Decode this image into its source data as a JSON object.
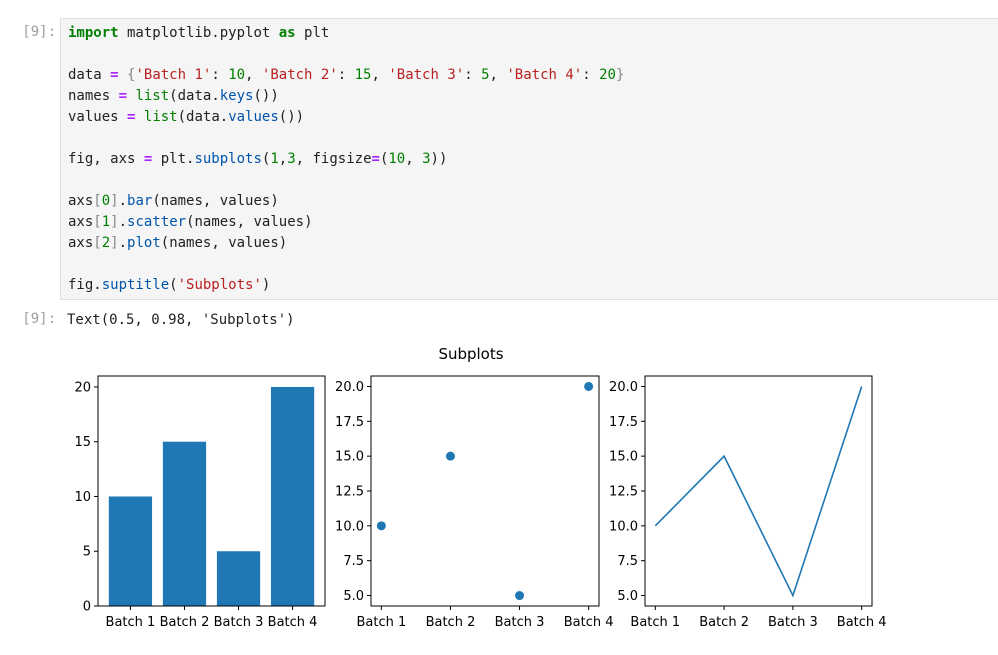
{
  "input_prompt": "[9]:",
  "output_prompt": "[9]:",
  "code_lines": [
    [
      [
        "kw",
        "import"
      ],
      [
        "t",
        " matplotlib.pyplot "
      ],
      [
        "kw",
        "as"
      ],
      [
        "t",
        " plt"
      ]
    ],
    [],
    [
      [
        "t",
        "data "
      ],
      [
        "op",
        "="
      ],
      [
        "t",
        " "
      ],
      [
        "br",
        "{"
      ],
      [
        "str",
        "'Batch 1'"
      ],
      [
        "t",
        ": "
      ],
      [
        "num",
        "10"
      ],
      [
        "t",
        ", "
      ],
      [
        "str",
        "'Batch 2'"
      ],
      [
        "t",
        ": "
      ],
      [
        "num",
        "15"
      ],
      [
        "t",
        ", "
      ],
      [
        "str",
        "'Batch 3'"
      ],
      [
        "t",
        ": "
      ],
      [
        "num",
        "5"
      ],
      [
        "t",
        ", "
      ],
      [
        "str",
        "'Batch 4'"
      ],
      [
        "t",
        ": "
      ],
      [
        "num",
        "20"
      ],
      [
        "br",
        "}"
      ]
    ],
    [
      [
        "t",
        "names "
      ],
      [
        "op",
        "="
      ],
      [
        "t",
        " "
      ],
      [
        "bi",
        "list"
      ],
      [
        "t",
        "(data."
      ],
      [
        "fn",
        "keys"
      ],
      [
        "t",
        "())"
      ]
    ],
    [
      [
        "t",
        "values "
      ],
      [
        "op",
        "="
      ],
      [
        "t",
        " "
      ],
      [
        "bi",
        "list"
      ],
      [
        "t",
        "(data."
      ],
      [
        "fn",
        "values"
      ],
      [
        "t",
        "())"
      ]
    ],
    [],
    [
      [
        "t",
        "fig, axs "
      ],
      [
        "op",
        "="
      ],
      [
        "t",
        " plt."
      ],
      [
        "fn",
        "subplots"
      ],
      [
        "t",
        "("
      ],
      [
        "num",
        "1"
      ],
      [
        "t",
        ","
      ],
      [
        "num",
        "3"
      ],
      [
        "t",
        ", figsize"
      ],
      [
        "op",
        "="
      ],
      [
        "t",
        "("
      ],
      [
        "num",
        "10"
      ],
      [
        "t",
        ", "
      ],
      [
        "num",
        "3"
      ],
      [
        "t",
        "))"
      ]
    ],
    [],
    [
      [
        "t",
        "axs"
      ],
      [
        "br",
        "["
      ],
      [
        "num",
        "0"
      ],
      [
        "br",
        "]"
      ],
      [
        "t",
        "."
      ],
      [
        "fn",
        "bar"
      ],
      [
        "t",
        "(names, values)"
      ]
    ],
    [
      [
        "t",
        "axs"
      ],
      [
        "br",
        "["
      ],
      [
        "num",
        "1"
      ],
      [
        "br",
        "]"
      ],
      [
        "t",
        "."
      ],
      [
        "fn",
        "scatter"
      ],
      [
        "t",
        "(names, values)"
      ]
    ],
    [
      [
        "t",
        "axs"
      ],
      [
        "br",
        "["
      ],
      [
        "num",
        "2"
      ],
      [
        "br",
        "]"
      ],
      [
        "t",
        "."
      ],
      [
        "fn",
        "plot"
      ],
      [
        "t",
        "(names, values)"
      ]
    ],
    [],
    [
      [
        "t",
        "fig."
      ],
      [
        "fn",
        "suptitle"
      ],
      [
        "t",
        "("
      ],
      [
        "str",
        "'Subplots'"
      ],
      [
        "t",
        ")"
      ]
    ]
  ],
  "output_text": "Text(0.5, 0.98, 'Subplots')",
  "colors": {
    "series": "#1f77b4"
  },
  "chart_data": {
    "title": "Subplots",
    "categories": [
      "Batch 1",
      "Batch 2",
      "Batch 3",
      "Batch 4"
    ],
    "values": [
      10,
      15,
      5,
      20
    ],
    "subplots": [
      {
        "type": "bar",
        "yticks": [
          0,
          5,
          10,
          15,
          20
        ],
        "ytick_labels": [
          "0",
          "5",
          "10",
          "15",
          "20"
        ],
        "ylim": [
          0,
          21
        ]
      },
      {
        "type": "scatter",
        "yticks": [
          5,
          7.5,
          10,
          12.5,
          15,
          17.5,
          20
        ],
        "ytick_labels": [
          "5.0",
          "7.5",
          "10.0",
          "12.5",
          "15.0",
          "17.5",
          "20.0"
        ],
        "ylim": [
          4.25,
          20.75
        ]
      },
      {
        "type": "line",
        "yticks": [
          5,
          7.5,
          10,
          12.5,
          15,
          17.5,
          20
        ],
        "ytick_labels": [
          "5.0",
          "7.5",
          "10.0",
          "12.5",
          "15.0",
          "17.5",
          "20.0"
        ],
        "ylim": [
          4.25,
          20.75
        ]
      }
    ]
  }
}
